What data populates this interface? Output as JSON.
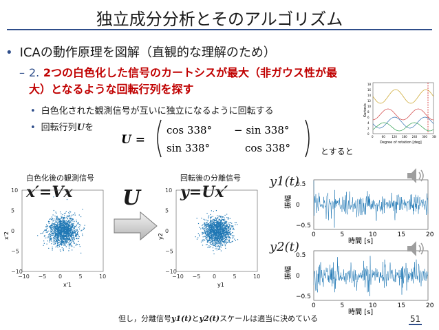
{
  "title": "独立成分分析とそのアルゴリズム",
  "bullet": "ICAの動作原理を図解（直観的な理解のため）",
  "sub": {
    "number": "2.",
    "text_line1": "2つの白色化した信号のカートシスが最大（非ガウス性が最",
    "text_line2": "大）となるような回転行列を探す"
  },
  "points": {
    "p1": "白色化された観測信号が互いに独立になるように回転する",
    "p2_prefix": "回転行列",
    "p2_var": "U",
    "p2_suffix": "を"
  },
  "matrix": {
    "lhs": "U =",
    "a11": "cos 338°",
    "a12": "− sin 338°",
    "a21": "sin 338°",
    "a22": "cos 338°"
  },
  "then_text": "とすると",
  "left_panel": {
    "label": "白色化後の観測信号",
    "equation": "x′=Vx",
    "xlabel": "x'1",
    "ylabel": "x'2",
    "ticks": [
      "−10",
      "−5",
      "0",
      "5",
      "10"
    ]
  },
  "arrow_label": "U",
  "right_panel": {
    "label": "回転後の分離信号",
    "equation": "y=Ux′",
    "xlabel": "y1",
    "ylabel": "y2",
    "ticks": [
      "−10",
      "−5",
      "0",
      "5",
      "10"
    ]
  },
  "kurtosis_plot": {
    "ylabel": "Kurtosis",
    "xlabel": "Degree of rotation [deg]",
    "yticks": [
      "18",
      "16",
      "14",
      "12",
      "10",
      "8",
      "6",
      "4",
      "2",
      "0"
    ],
    "xticks": [
      "0",
      "60",
      "120",
      "180",
      "240",
      "300",
      "360"
    ]
  },
  "signal1": {
    "label": "y1(t)",
    "ylabel": "振幅",
    "xlabel": "時間 [s]",
    "yticks": [
      "0.5",
      "0",
      "−0.5"
    ],
    "xticks": [
      "0",
      "5",
      "10",
      "15",
      "20"
    ]
  },
  "signal2": {
    "label": "y2(t)",
    "ylabel": "振幅",
    "xlabel": "時間 [s]",
    "yticks": [
      "0.5",
      "0",
      "−0.5"
    ],
    "xticks": [
      "0",
      "5",
      "10",
      "15",
      "20"
    ]
  },
  "footnote": {
    "prefix": "但し，分離信号",
    "y1": "y1(t)",
    "and": "と",
    "y2": "y2(t)",
    "suffix": "スケールは適当に決めている"
  },
  "page_number": "51",
  "colors": {
    "accent": "#2e4d8a",
    "emphasis": "#c00000",
    "scatter": "#1f77b4",
    "signal": "#1f77b4"
  },
  "icons": [
    "speaker-icon",
    "speaker-icon"
  ]
}
